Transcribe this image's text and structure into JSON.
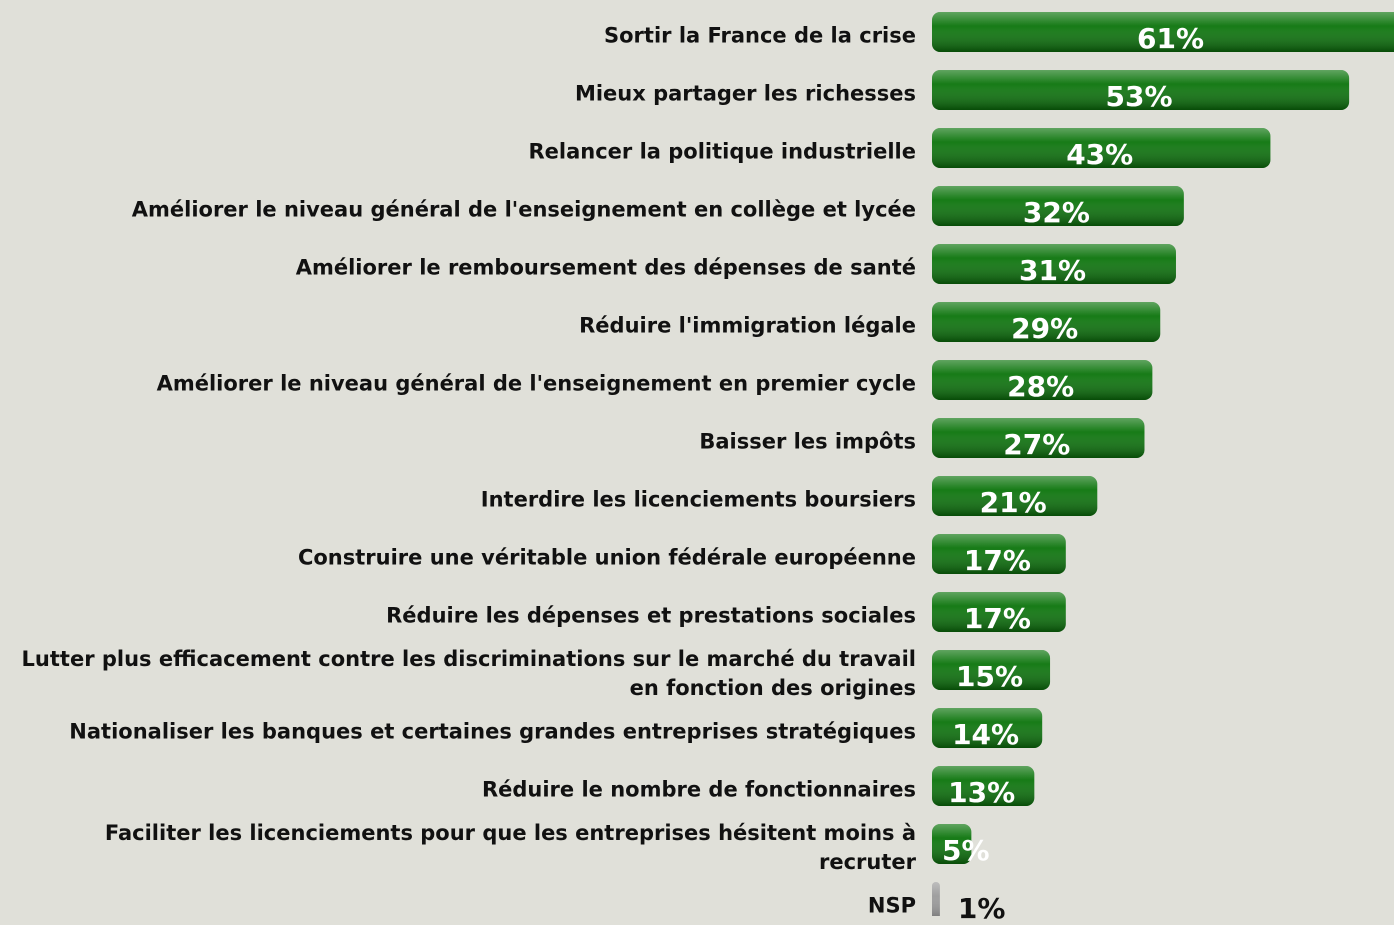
{
  "chart_data": {
    "type": "bar",
    "orientation": "horizontal",
    "categories": [
      "Sortir la France de la crise",
      "Mieux partager les richesses",
      "Relancer la politique industrielle",
      "Améliorer le niveau général de l'enseignement en collège et lycée",
      "Améliorer le remboursement des dépenses de santé",
      "Réduire l'immigration légale",
      "Améliorer le niveau général de l'enseignement en premier cycle",
      "Baisser les impôts",
      "Interdire les licenciements boursiers",
      "Construire une véritable union fédérale européenne",
      "Réduire les dépenses et prestations sociales",
      "Lutter plus efficacement contre les discriminations sur le marché du travail en fonction des origines",
      "Nationaliser les banques et certaines grandes entreprises stratégiques",
      "Réduire le nombre de fonctionnaires",
      "Faciliter les licenciements pour que les entreprises hésitent moins à recruter",
      "NSP"
    ],
    "values": [
      61,
      53,
      43,
      32,
      31,
      29,
      28,
      27,
      21,
      17,
      17,
      15,
      14,
      13,
      5,
      1
    ],
    "value_labels": [
      "61%",
      "53%",
      "43%",
      "32%",
      "31%",
      "29%",
      "28%",
      "27%",
      "21%",
      "17%",
      "17%",
      "15%",
      "14%",
      "13%",
      "5%",
      "1%"
    ],
    "colors": [
      "#0b740b",
      "#0b740b",
      "#0b740b",
      "#0b740b",
      "#0b740b",
      "#0b740b",
      "#0b740b",
      "#0b740b",
      "#0b740b",
      "#0b740b",
      "#0b740b",
      "#0b740b",
      "#0b740b",
      "#0b740b",
      "#0b740b",
      "#9a9a9a"
    ]
  }
}
